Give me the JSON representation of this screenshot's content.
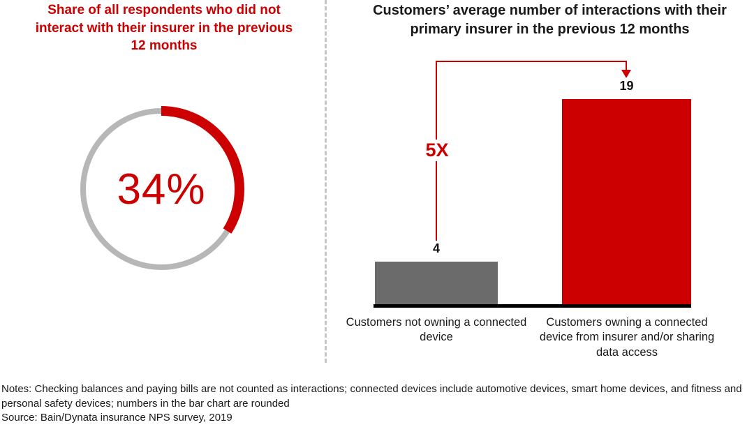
{
  "chart_data": [
    {
      "type": "donut",
      "title": "Share of all respondents who did not interact with their insurer in the previous 12 months",
      "value": 34,
      "value_label": "34%",
      "arc_color": "#cc0000",
      "track_color": "#b7b7b7"
    },
    {
      "type": "bar",
      "title": "Customers’ average number of interactions with their primary insurer in the previous 12 months",
      "categories": [
        "Customers not owning a connected device",
        "Customers owning a connected device from insurer and/or sharing data access"
      ],
      "values": [
        4,
        19
      ],
      "data_labels": [
        "4",
        "19"
      ],
      "bar_colors": [
        "#6b6b6b",
        "#cc0000"
      ],
      "annotation": "5X",
      "ylim": [
        0,
        19
      ],
      "grid": false,
      "legend": false
    }
  ],
  "footer": {
    "notes": "Notes: Checking balances and paying bills are not counted as interactions; connected devices include automotive devices, smart home devices, and fitness and personal safety devices; numbers in the bar chart are rounded",
    "source": "Source: Bain/Dynata insurance NPS survey, 2019"
  }
}
